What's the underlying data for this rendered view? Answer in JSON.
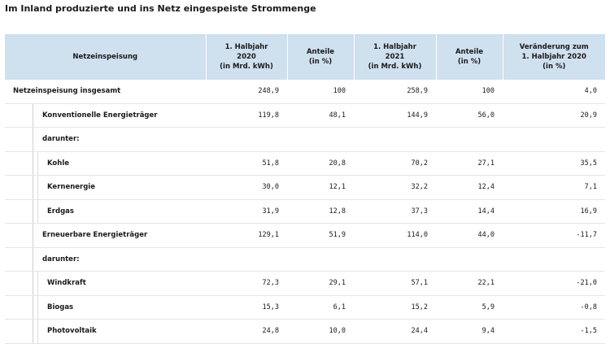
{
  "title": "Im Inland produzierte und ins Netz eingespeiste Strommenge",
  "headers": [
    "Netzeinspeisung",
    "1. Halbjahr\n2020\n(in Mrd. kWh)",
    "Anteile\n(in %)",
    "1. Halbjahr\n2021\n(in Mrd. kWh)",
    "Anteile\n(in %)",
    "Veränderung zum\n1. Halbjahr 2020\n(in %)"
  ],
  "rows": [
    {
      "label": "Netzeinspeisung insgesamt",
      "level": 0,
      "v2020": "248,9",
      "a2020": "100",
      "v2021": "258,9",
      "a2021": "100",
      "change": "4,0"
    },
    {
      "label": "Konventionelle Energieträger",
      "level": 1,
      "v2020": "119,8",
      "a2020": "48,1",
      "v2021": "144,9",
      "a2021": "56,0",
      "change": "20,9"
    },
    {
      "label": "darunter:",
      "level": 1,
      "v2020": "",
      "a2020": "",
      "v2021": "",
      "a2021": "",
      "change": ""
    },
    {
      "label": "Kohle",
      "level": 2,
      "v2020": "51,8",
      "a2020": "20,8",
      "v2021": "70,2",
      "a2021": "27,1",
      "change": "35,5"
    },
    {
      "label": "Kernenergie",
      "level": 2,
      "v2020": "30,0",
      "a2020": "12,1",
      "v2021": "32,2",
      "a2021": "12,4",
      "change": "7,1"
    },
    {
      "label": "Erdgas",
      "level": 2,
      "v2020": "31,9",
      "a2020": "12,8",
      "v2021": "37,3",
      "a2021": "14,4",
      "change": "16,9"
    },
    {
      "label": "Erneuerbare Energieträger",
      "level": 1,
      "v2020": "129,1",
      "a2020": "51,9",
      "v2021": "114,0",
      "a2021": "44,0",
      "change": "-11,7"
    },
    {
      "label": "darunter:",
      "level": 1,
      "v2020": "",
      "a2020": "",
      "v2021": "",
      "a2021": "",
      "change": ""
    },
    {
      "label": "Windkraft",
      "level": 2,
      "v2020": "72,3",
      "a2020": "29,1",
      "v2021": "57,1",
      "a2021": "22,1",
      "change": "-21,0"
    },
    {
      "label": "Biogas",
      "level": 2,
      "v2020": "15,3",
      "a2020": "6,1",
      "v2021": "15,2",
      "a2021": "5,9",
      "change": "-0,8"
    },
    {
      "label": "Photovoltaik",
      "level": 2,
      "v2020": "24,8",
      "a2020": "10,0",
      "v2021": "24,4",
      "a2021": "9,4",
      "change": "-1,5"
    }
  ]
}
